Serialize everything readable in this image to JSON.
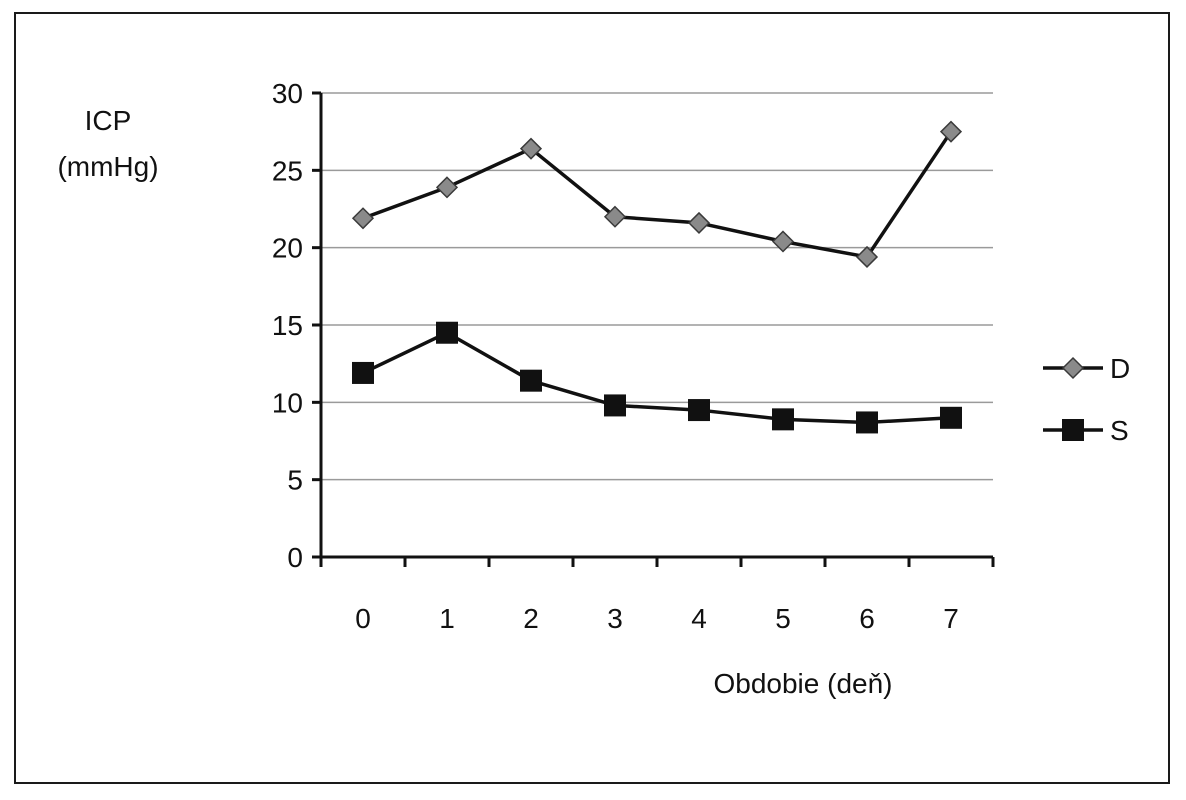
{
  "chart_data": {
    "type": "line",
    "title": "",
    "ylabel_lines": [
      "ICP",
      "(mmHg)"
    ],
    "xlabel": "Obdobie (deň)",
    "categories": [
      "0",
      "1",
      "2",
      "3",
      "4",
      "5",
      "6",
      "7"
    ],
    "ylim": [
      0,
      30
    ],
    "yticks": [
      "0",
      "5",
      "10",
      "15",
      "20",
      "25",
      "30"
    ],
    "grid": true,
    "legend_position": "right",
    "series": [
      {
        "name": "D",
        "marker": "diamond",
        "marker_color": "#8a8a8a",
        "line_color": "#111111",
        "values": [
          21.9,
          23.9,
          26.4,
          22.0,
          21.6,
          20.4,
          19.4,
          27.5
        ]
      },
      {
        "name": "S",
        "marker": "square",
        "marker_color": "#111111",
        "line_color": "#111111",
        "values": [
          11.9,
          14.5,
          11.4,
          9.8,
          9.5,
          8.9,
          8.7,
          9.0
        ]
      }
    ]
  }
}
